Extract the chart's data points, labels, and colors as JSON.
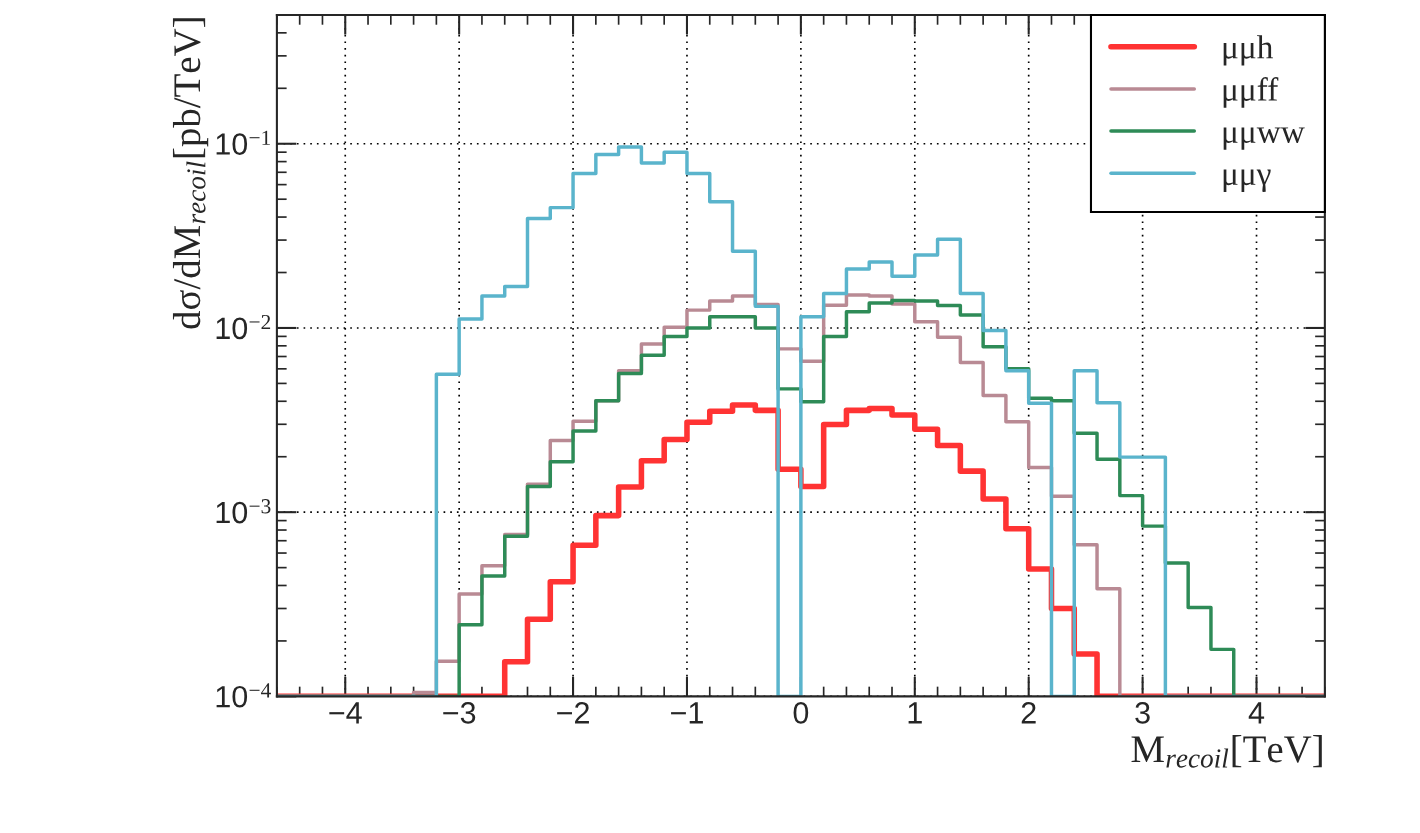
{
  "chart_data": {
    "type": "histogram",
    "xlabel": "M$_{recoil}$[TeV]",
    "ylabel": "dσ/dM$_{recoil}$[pb/TeV]",
    "bins": [
      -4.6,
      -4.4,
      -4.2,
      -4.0,
      -3.8,
      -3.6,
      -3.4,
      -3.2,
      -3.0,
      -2.8,
      -2.6,
      -2.4,
      -2.2,
      -2.0,
      -1.8,
      -1.6,
      -1.4,
      -1.2,
      -1.0,
      -0.8,
      -0.6,
      -0.4,
      -0.2,
      0.0,
      0.2,
      0.4,
      0.6,
      0.8,
      1.0,
      1.2,
      1.4,
      1.6,
      1.8,
      2.0,
      2.2,
      2.4,
      2.6,
      2.8,
      3.0,
      3.2,
      3.4,
      3.6,
      3.8,
      4.0,
      4.2,
      4.4,
      4.6
    ],
    "series": [
      {
        "name": "μμh",
        "color": "#ff3333",
        "values": [
          0.0001,
          0.0001,
          0.0001,
          0.0001,
          0.0001,
          0.0001,
          0.0001,
          0.0001,
          0.0001,
          0.0001,
          0.000154,
          0.000262,
          0.000419,
          0.000662,
          0.000958,
          0.00137,
          0.0019,
          0.00248,
          0.00308,
          0.00353,
          0.00382,
          0.00357,
          0.00171,
          0.00138,
          0.00299,
          0.00357,
          0.00365,
          0.00337,
          0.00282,
          0.0023,
          0.00167,
          0.00118,
          0.000813,
          0.000492,
          0.0003,
          0.00017,
          0.0001,
          0.0001,
          0.0001,
          0.0001,
          0.0001,
          0.0001,
          0.0001,
          0.0001,
          0.0001,
          0.0001
        ]
      },
      {
        "name": "μμff",
        "color": "#b98a94",
        "values": [
          0.0001,
          0.0001,
          0.0001,
          0.0001,
          0.0001,
          0.0001,
          0.000105,
          0.000155,
          0.00036,
          0.000512,
          0.000757,
          0.00142,
          0.00245,
          0.00312,
          0.00403,
          0.00586,
          0.00819,
          0.0101,
          0.0125,
          0.014,
          0.0149,
          0.0134,
          0.0077,
          0.0066,
          0.0133,
          0.0151,
          0.0149,
          0.0135,
          0.0108,
          0.0089,
          0.0065,
          0.0043,
          0.0031,
          0.00175,
          0.00122,
          0.000665,
          0.000384,
          0.0001,
          0.0001,
          0.0001,
          0.0001,
          0.0001,
          0.0001,
          0.0001,
          0.0001,
          0.0001
        ]
      },
      {
        "name": "μμww",
        "color": "#2e8b57",
        "values": [
          0.0001,
          0.0001,
          0.0001,
          0.0001,
          0.0001,
          0.0001,
          0.0001,
          0.0001,
          0.000245,
          0.00045,
          0.00074,
          0.00138,
          0.00188,
          0.00276,
          0.00403,
          0.00566,
          0.00711,
          0.00899,
          0.01,
          0.0115,
          0.0115,
          0.01,
          0.00467,
          0.00398,
          0.009,
          0.01225,
          0.01365,
          0.0141,
          0.014,
          0.01325,
          0.01175,
          0.0079,
          0.006,
          0.00415,
          0.00403,
          0.00268,
          0.00194,
          0.00123,
          0.00084,
          0.00053,
          0.000304,
          0.00018,
          0.0001,
          0.0001,
          0.0001,
          0.0001
        ]
      },
      {
        "name": "μμγ",
        "color": "#5ab4cc",
        "values": [
          0.0001,
          0.0001,
          0.0001,
          0.0001,
          0.0001,
          0.0001,
          0.0001,
          0.0056,
          0.0112,
          0.0149,
          0.0168,
          0.0393,
          0.045,
          0.069,
          0.0875,
          0.096,
          0.0786,
          0.09,
          0.069,
          0.0484,
          0.0261,
          0.0131,
          0.0001,
          0.0115,
          0.0154,
          0.0209,
          0.0228,
          0.0191,
          0.0249,
          0.0303,
          0.0154,
          0.0097,
          0.00586,
          0.0039,
          0.0001,
          0.00586,
          0.00393,
          0.00199,
          0.00199,
          0.0001,
          0.0001,
          0.0001,
          0.0001,
          0.0001,
          0.0001,
          0.0001
        ]
      }
    ],
    "log": "y",
    "xlim": [
      -4.6,
      4.6
    ],
    "ylim": [
      0.0001,
      0.5
    ],
    "xticks": [
      -4,
      -3,
      -2,
      -1,
      0,
      1,
      2,
      3,
      4
    ],
    "yticks": [
      {
        "value": 0.0001,
        "label": "10$^{−4}$"
      },
      {
        "value": 0.001,
        "label": "10$^{−3}$"
      },
      {
        "value": 0.01,
        "label": "10$^{−2}$"
      },
      {
        "value": 0.1,
        "label": "10$^{−1}$"
      }
    ],
    "grid": true,
    "legend": "top right"
  }
}
